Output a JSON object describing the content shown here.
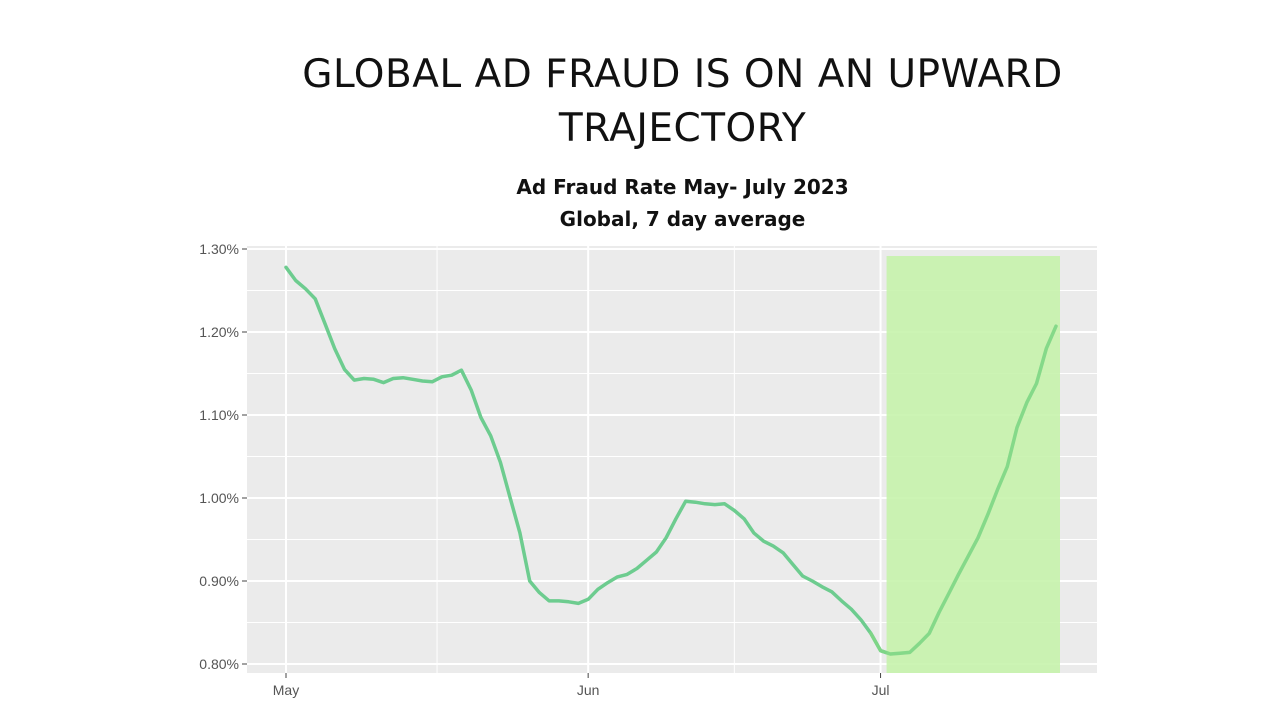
{
  "slide": {
    "title": "GLOBAL AD FRAUD IS ON AN UPWARD TRAJECTORY"
  },
  "chart_data": {
    "type": "line",
    "title": "Ad Fraud Rate May- July 2023",
    "subtitle": "Global, 7 day average",
    "xlabel": "",
    "ylabel": "",
    "x": [
      "2023-05-01",
      "2023-05-02",
      "2023-05-03",
      "2023-05-04",
      "2023-05-05",
      "2023-05-06",
      "2023-05-07",
      "2023-05-08",
      "2023-05-09",
      "2023-05-10",
      "2023-05-11",
      "2023-05-12",
      "2023-05-13",
      "2023-05-14",
      "2023-05-15",
      "2023-05-16",
      "2023-05-17",
      "2023-05-18",
      "2023-05-19",
      "2023-05-20",
      "2023-05-21",
      "2023-05-22",
      "2023-05-23",
      "2023-05-24",
      "2023-05-25",
      "2023-05-26",
      "2023-05-27",
      "2023-05-28",
      "2023-05-29",
      "2023-05-30",
      "2023-05-31",
      "2023-06-01",
      "2023-06-02",
      "2023-06-03",
      "2023-06-04",
      "2023-06-05",
      "2023-06-06",
      "2023-06-07",
      "2023-06-08",
      "2023-06-09",
      "2023-06-10",
      "2023-06-11",
      "2023-06-12",
      "2023-06-13",
      "2023-06-14",
      "2023-06-15",
      "2023-06-16",
      "2023-06-17",
      "2023-06-18",
      "2023-06-19",
      "2023-06-20",
      "2023-06-21",
      "2023-06-22",
      "2023-06-23",
      "2023-06-24",
      "2023-06-25",
      "2023-06-26",
      "2023-06-27",
      "2023-06-28",
      "2023-06-29",
      "2023-06-30",
      "2023-07-01",
      "2023-07-02",
      "2023-07-03",
      "2023-07-04",
      "2023-07-05",
      "2023-07-06",
      "2023-07-07",
      "2023-07-08",
      "2023-07-09",
      "2023-07-10",
      "2023-07-11",
      "2023-07-12",
      "2023-07-13",
      "2023-07-14",
      "2023-07-15",
      "2023-07-16",
      "2023-07-17",
      "2023-07-18",
      "2023-07-19"
    ],
    "series": [
      {
        "values": [
          1.278,
          1.262,
          1.252,
          1.24,
          1.21,
          1.18,
          1.155,
          1.142,
          1.144,
          1.143,
          1.139,
          1.144,
          1.145,
          1.143,
          1.141,
          1.14,
          1.146,
          1.148,
          1.154,
          1.13,
          1.097,
          1.075,
          1.043,
          1.0,
          0.958,
          0.9,
          0.886,
          0.876,
          0.876,
          0.875,
          0.873,
          0.878,
          0.89,
          0.898,
          0.905,
          0.908,
          0.915,
          0.925,
          0.935,
          0.952,
          0.975,
          0.996,
          0.995,
          0.993,
          0.992,
          0.993,
          0.985,
          0.975,
          0.958,
          0.948,
          0.942,
          0.934,
          0.92,
          0.906,
          0.9,
          0.893,
          0.887,
          0.876,
          0.866,
          0.853,
          0.837,
          0.816,
          0.812,
          0.813,
          0.814,
          0.825,
          0.837,
          0.862,
          0.885,
          0.908,
          0.93,
          0.952,
          0.98,
          1.01,
          1.038,
          1.085,
          1.115,
          1.138,
          1.18,
          1.207
        ]
      }
    ],
    "ylim": [
      0.8,
      1.3
    ],
    "yticks": [
      "0.80%",
      "0.90%",
      "1.00%",
      "1.10%",
      "1.20%",
      "1.30%"
    ],
    "ytick_values": [
      0.8,
      0.9,
      1.0,
      1.1,
      1.2,
      1.3
    ],
    "xticks": [
      "May",
      "Jun",
      "Jul"
    ],
    "xtick_values": [
      "2023-05-01",
      "2023-06-01",
      "2023-07-01"
    ],
    "highlight": {
      "start": "2023-07-01",
      "end": "2023-07-19",
      "color": "#c5f2aa"
    },
    "colors": {
      "line": "#6dcc8f",
      "panel": "#ebebeb",
      "grid": "#ffffff"
    },
    "grid": true,
    "legend": "none"
  }
}
